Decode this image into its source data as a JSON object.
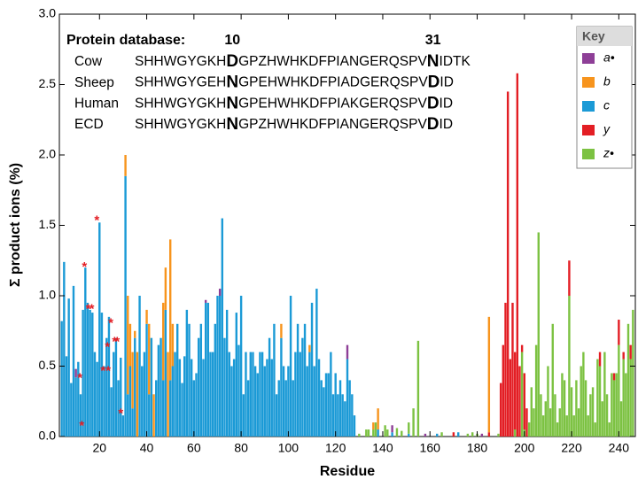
{
  "chart_data": {
    "type": "stacked_bar",
    "y_label": "Σ product ions (%)",
    "x_label": "Residue",
    "xlim": [
      3,
      247
    ],
    "ylim": [
      0,
      3
    ],
    "xticks": [
      20,
      40,
      60,
      80,
      100,
      120,
      140,
      160,
      180,
      200,
      220,
      240
    ],
    "yticks": [
      {
        "value": 0,
        "label": "0.0"
      },
      0.5,
      {
        "value": 1,
        "label": "1.0"
      },
      1.5,
      {
        "value": 2,
        "label": "2.0"
      },
      2.5,
      {
        "value": 3,
        "label": "3.0"
      }
    ],
    "legend_title": "Key",
    "legend_position": "top-right",
    "x": [
      4,
      5,
      6,
      7,
      8,
      9,
      10,
      11,
      12,
      13,
      14,
      15,
      16,
      17,
      18,
      19,
      20,
      21,
      22,
      23,
      24,
      25,
      26,
      27,
      28,
      29,
      30,
      31,
      32,
      33,
      34,
      35,
      36,
      37,
      38,
      39,
      40,
      41,
      42,
      43,
      44,
      45,
      46,
      47,
      48,
      49,
      50,
      51,
      52,
      53,
      54,
      55,
      56,
      57,
      58,
      59,
      60,
      61,
      62,
      63,
      64,
      65,
      66,
      67,
      68,
      69,
      70,
      71,
      72,
      73,
      74,
      75,
      76,
      77,
      78,
      79,
      80,
      81,
      82,
      83,
      84,
      85,
      86,
      87,
      88,
      89,
      90,
      91,
      92,
      93,
      94,
      95,
      96,
      97,
      98,
      99,
      100,
      101,
      102,
      103,
      104,
      105,
      106,
      107,
      108,
      109,
      110,
      111,
      112,
      113,
      114,
      115,
      116,
      117,
      118,
      119,
      120,
      121,
      122,
      123,
      124,
      125,
      126,
      127,
      128,
      130,
      133,
      134,
      136,
      137,
      138,
      141,
      142,
      144,
      146,
      148,
      151,
      153,
      155,
      158,
      163,
      165,
      170,
      172,
      176,
      178,
      180,
      182,
      185,
      189,
      190,
      191,
      192,
      193,
      194,
      195,
      196,
      197,
      198,
      199,
      200,
      201,
      202,
      203,
      204,
      205,
      206,
      207,
      208,
      209,
      210,
      211,
      212,
      213,
      214,
      215,
      216,
      217,
      218,
      219,
      220,
      221,
      222,
      223,
      224,
      225,
      226,
      227,
      228,
      229,
      230,
      231,
      232,
      233,
      234,
      235,
      236,
      237,
      238,
      239,
      240,
      241,
      242,
      243,
      244,
      245,
      246
    ],
    "series": [
      {
        "name": "a•",
        "color": "#8e3f97",
        "values": [
          0,
          0,
          0,
          0,
          0,
          0,
          0.06,
          0,
          0,
          0,
          0,
          0,
          0,
          0,
          0,
          0,
          0,
          0,
          0,
          0,
          0,
          0,
          0,
          0,
          0,
          0,
          0,
          0,
          0,
          0,
          0,
          0,
          0,
          0,
          0,
          0,
          0,
          0,
          0,
          0,
          0,
          0,
          0,
          0,
          0,
          0,
          0,
          0,
          0,
          0,
          0,
          0,
          0,
          0,
          0,
          0,
          0,
          0,
          0,
          0,
          0,
          0.02,
          0,
          0,
          0,
          0,
          0,
          0.05,
          0,
          0,
          0,
          0,
          0,
          0,
          0,
          0,
          0,
          0,
          0,
          0,
          0,
          0,
          0,
          0,
          0,
          0,
          0,
          0,
          0,
          0,
          0,
          0,
          0,
          0,
          0,
          0,
          0,
          0,
          0,
          0,
          0,
          0,
          0,
          0,
          0,
          0,
          0,
          0,
          0,
          0,
          0,
          0,
          0,
          0,
          0,
          0,
          0,
          0,
          0,
          0,
          0,
          0.1,
          0,
          0,
          0,
          0,
          0,
          0,
          0,
          0,
          0,
          0,
          0,
          0.05,
          0,
          0,
          0,
          0,
          0,
          0.02,
          0,
          0,
          0,
          0,
          0,
          0,
          0,
          0.02,
          0,
          0,
          0,
          0,
          0,
          0,
          0,
          0,
          0,
          0,
          0,
          0,
          0,
          0,
          0,
          0,
          0,
          0,
          0,
          0,
          0,
          0,
          0,
          0,
          0,
          0,
          0,
          0,
          0,
          0,
          0,
          0,
          0,
          0,
          0,
          0,
          0,
          0,
          0,
          0,
          0,
          0,
          0,
          0,
          0,
          0,
          0,
          0,
          0,
          0,
          0,
          0,
          0,
          0,
          0,
          0,
          0,
          0,
          0
        ]
      },
      {
        "name": "b",
        "color": "#f7941d",
        "values": [
          0,
          0,
          0,
          0,
          0,
          0,
          0,
          0,
          0,
          0,
          0,
          0,
          0,
          0,
          0,
          0,
          0,
          0,
          0,
          0,
          0,
          0,
          0,
          0,
          0,
          0,
          0,
          0.15,
          0.7,
          0.3,
          0.4,
          0.05,
          0.6,
          0,
          0,
          0,
          0.1,
          0.5,
          0,
          0.3,
          0,
          0,
          0,
          0.55,
          0.3,
          0.6,
          1,
          0.3,
          0,
          0,
          0,
          0,
          0,
          0,
          0,
          0,
          0,
          0,
          0,
          0,
          0,
          0,
          0,
          0,
          0,
          0,
          0,
          0,
          0,
          0,
          0,
          0,
          0,
          0,
          0,
          0,
          0,
          0,
          0,
          0,
          0,
          0,
          0,
          0,
          0,
          0,
          0,
          0,
          0,
          0,
          0,
          0,
          0,
          0.1,
          0,
          0,
          0,
          0,
          0,
          0,
          0,
          0,
          0,
          0,
          0,
          0.05,
          0,
          0,
          0,
          0,
          0,
          0,
          0,
          0,
          0,
          0,
          0,
          0,
          0,
          0,
          0,
          0,
          0,
          0,
          0,
          0,
          0,
          0,
          0.05,
          0,
          0.15,
          0,
          0,
          0,
          0,
          0,
          0,
          0,
          0,
          0,
          0,
          0,
          0,
          0,
          0,
          0,
          0,
          0,
          0.82,
          0,
          0,
          0,
          0,
          0,
          0,
          0,
          0,
          0,
          0,
          0,
          0,
          0,
          0,
          0,
          0,
          0,
          0,
          0,
          0,
          0,
          0,
          0,
          0,
          0,
          0,
          0,
          0,
          0,
          0,
          0,
          0,
          0,
          0,
          0,
          0,
          0,
          0,
          0,
          0,
          0,
          0,
          0,
          0,
          0,
          0,
          0,
          0,
          0,
          0,
          0,
          0,
          0,
          0,
          0,
          0,
          0,
          0
        ]
      },
      {
        "name": "c",
        "color": "#1b9ad6",
        "values": [
          0.82,
          1.24,
          0.57,
          0.98,
          0.38,
          1.07,
          0.42,
          0.53,
          0.3,
          0.9,
          1.2,
          0.95,
          0.9,
          0.88,
          0.6,
          0.53,
          1.52,
          0.88,
          0.5,
          0.7,
          0.85,
          0.35,
          0.6,
          0.7,
          0.4,
          0.56,
          0.15,
          1.85,
          0.3,
          0.5,
          0.2,
          0.7,
          0,
          1,
          0.5,
          0.6,
          0.8,
          0.3,
          0.7,
          0,
          0.4,
          0.65,
          0.7,
          0.4,
          0.9,
          0,
          0.4,
          0.5,
          0.6,
          0.8,
          0.55,
          0.38,
          0.57,
          0.9,
          0.8,
          0.55,
          0.4,
          0.45,
          0.7,
          0.8,
          0.55,
          0.95,
          0.95,
          0.6,
          0.6,
          0.8,
          1,
          1,
          1.55,
          0.7,
          0.9,
          0.6,
          0.5,
          0.55,
          0.88,
          0.65,
          1,
          0.3,
          0.6,
          0.4,
          0.6,
          0.6,
          0.5,
          0.45,
          0.6,
          0.6,
          0.5,
          0.55,
          0.7,
          0.55,
          0.8,
          0.3,
          0.4,
          0.7,
          0.5,
          0.4,
          0.5,
          1,
          0.4,
          0.6,
          0.8,
          0.6,
          0.7,
          0.8,
          0.5,
          0.6,
          0.95,
          0.5,
          1.05,
          0.55,
          0.4,
          0.35,
          0.45,
          0.45,
          0.6,
          0.3,
          0.45,
          0.3,
          0.4,
          0.3,
          0.25,
          0.55,
          0.4,
          0.3,
          0.15,
          0,
          0,
          0,
          0,
          0,
          0.05,
          0,
          0,
          0.03,
          0,
          0,
          0.02,
          0,
          0,
          0,
          0.02,
          0,
          0,
          0.03,
          0,
          0,
          0,
          0,
          0,
          0,
          0,
          0,
          0,
          0,
          0,
          0,
          0,
          0,
          0,
          0,
          0,
          0,
          0,
          0,
          0,
          0,
          0,
          0,
          0,
          0,
          0,
          0,
          0,
          0,
          0,
          0,
          0,
          0,
          0,
          0,
          0,
          0,
          0,
          0,
          0,
          0,
          0,
          0,
          0,
          0,
          0,
          0,
          0,
          0,
          0,
          0,
          0,
          0,
          0,
          0,
          0,
          0,
          0,
          0,
          0,
          0,
          0
        ]
      },
      {
        "name": "y",
        "color": "#e31e24",
        "values": [
          0,
          0,
          0,
          0,
          0,
          0,
          0,
          0,
          0,
          0,
          0,
          0,
          0,
          0,
          0,
          0,
          0,
          0,
          0,
          0,
          0,
          0,
          0,
          0,
          0,
          0,
          0,
          0,
          0,
          0,
          0,
          0,
          0,
          0,
          0,
          0,
          0,
          0,
          0,
          0,
          0,
          0,
          0,
          0,
          0,
          0,
          0,
          0,
          0,
          0,
          0,
          0,
          0,
          0,
          0,
          0,
          0,
          0,
          0,
          0,
          0,
          0,
          0,
          0,
          0,
          0,
          0,
          0,
          0,
          0,
          0,
          0,
          0,
          0,
          0,
          0,
          0,
          0,
          0,
          0,
          0,
          0,
          0,
          0,
          0,
          0,
          0,
          0,
          0,
          0,
          0,
          0,
          0,
          0,
          0,
          0,
          0,
          0,
          0,
          0,
          0,
          0,
          0,
          0,
          0,
          0,
          0,
          0,
          0,
          0,
          0,
          0,
          0,
          0,
          0,
          0,
          0,
          0,
          0,
          0,
          0,
          0,
          0,
          0,
          0,
          0,
          0,
          0,
          0,
          0,
          0,
          0,
          0,
          0,
          0,
          0,
          0,
          0,
          0,
          0,
          0,
          0,
          0.03,
          0,
          0,
          0,
          0,
          0,
          0.03,
          0,
          0.38,
          0.65,
          0.95,
          2.45,
          0.55,
          0.95,
          0.55,
          2.58,
          0.5,
          0.05,
          0.4,
          0.2,
          0,
          0,
          0,
          0,
          0,
          0,
          0,
          0,
          0,
          0,
          0,
          0,
          0,
          0,
          0,
          0,
          0,
          0.25,
          0,
          0,
          0,
          0,
          0,
          0,
          0,
          0,
          0,
          0,
          0,
          0,
          0.1,
          0,
          0,
          0,
          0,
          0,
          0.05,
          0,
          0.18,
          0,
          0.05,
          0,
          0,
          0.1,
          0
        ]
      },
      {
        "name": "z•",
        "color": "#7cc242",
        "values": [
          0,
          0,
          0,
          0,
          0,
          0,
          0,
          0,
          0,
          0,
          0,
          0,
          0,
          0,
          0,
          0,
          0,
          0,
          0,
          0,
          0,
          0,
          0,
          0,
          0,
          0,
          0,
          0,
          0,
          0,
          0,
          0,
          0,
          0,
          0,
          0,
          0,
          0,
          0,
          0,
          0,
          0,
          0,
          0,
          0,
          0,
          0,
          0,
          0,
          0,
          0,
          0,
          0,
          0,
          0,
          0,
          0,
          0,
          0,
          0,
          0,
          0,
          0,
          0,
          0,
          0,
          0,
          0,
          0,
          0,
          0,
          0,
          0,
          0,
          0,
          0,
          0,
          0,
          0,
          0,
          0,
          0,
          0,
          0,
          0,
          0,
          0,
          0,
          0,
          0,
          0,
          0,
          0,
          0,
          0,
          0,
          0,
          0,
          0,
          0,
          0,
          0,
          0,
          0,
          0,
          0,
          0,
          0,
          0,
          0,
          0,
          0,
          0,
          0,
          0,
          0,
          0,
          0,
          0,
          0,
          0,
          0,
          0,
          0,
          0,
          0.02,
          0.05,
          0.05,
          0.05,
          0.1,
          0,
          0.08,
          0.05,
          0,
          0.06,
          0.04,
          0.08,
          0.2,
          0.68,
          0,
          0,
          0.03,
          0,
          0,
          0.02,
          0.03,
          0.02,
          0,
          0,
          0.02,
          0,
          0,
          0,
          0,
          0,
          0,
          0.05,
          0,
          0,
          0.6,
          0.05,
          0,
          0.1,
          0.35,
          0.2,
          0.65,
          1.45,
          0.3,
          0.15,
          0.25,
          0.5,
          0.2,
          0.8,
          0.3,
          0.1,
          0.2,
          0.45,
          0.4,
          0.15,
          1,
          0.35,
          0.15,
          0.4,
          0.2,
          0.5,
          0.6,
          0.4,
          0.15,
          0.3,
          0.35,
          0.1,
          0.55,
          0.5,
          0.25,
          0.6,
          0.3,
          0.1,
          0.45,
          0.4,
          0.45,
          0.65,
          0.25,
          0.55,
          0.45,
          0.8,
          0.55,
          0.9
        ]
      }
    ],
    "markers": {
      "symbol": "*",
      "color": "#e31e24",
      "x": [
        11.7,
        13.6,
        15.2,
        16.7,
        18.9,
        21.5,
        23.7,
        23.4,
        24.8,
        26.4,
        27.5,
        29,
        12.5
      ],
      "y": [
        0.43,
        1.22,
        0.92,
        0.92,
        1.55,
        0.48,
        0.48,
        0.65,
        0.82,
        0.69,
        0.69,
        0.18,
        0.09
      ]
    },
    "database": {
      "title": "Protein database:",
      "positions": [
        10,
        31
      ],
      "rows": [
        {
          "name": "Cow",
          "sequence": "SHHWGYGKHDGPZHWHKDFPIANGERQSPVNIDTK"
        },
        {
          "name": "Sheep",
          "sequence": "SHHWGYGEHNGPEHWHKDFPIADGERQSPVDID"
        },
        {
          "name": "Human",
          "sequence": "SHHWGYGKHNGPEHWHKDFPIAKGERQSPVDID"
        },
        {
          "name": "ECD",
          "sequence": "SHHWGYGKHNGPZHWHKDFPIANGERQSPVDID"
        }
      ]
    }
  }
}
